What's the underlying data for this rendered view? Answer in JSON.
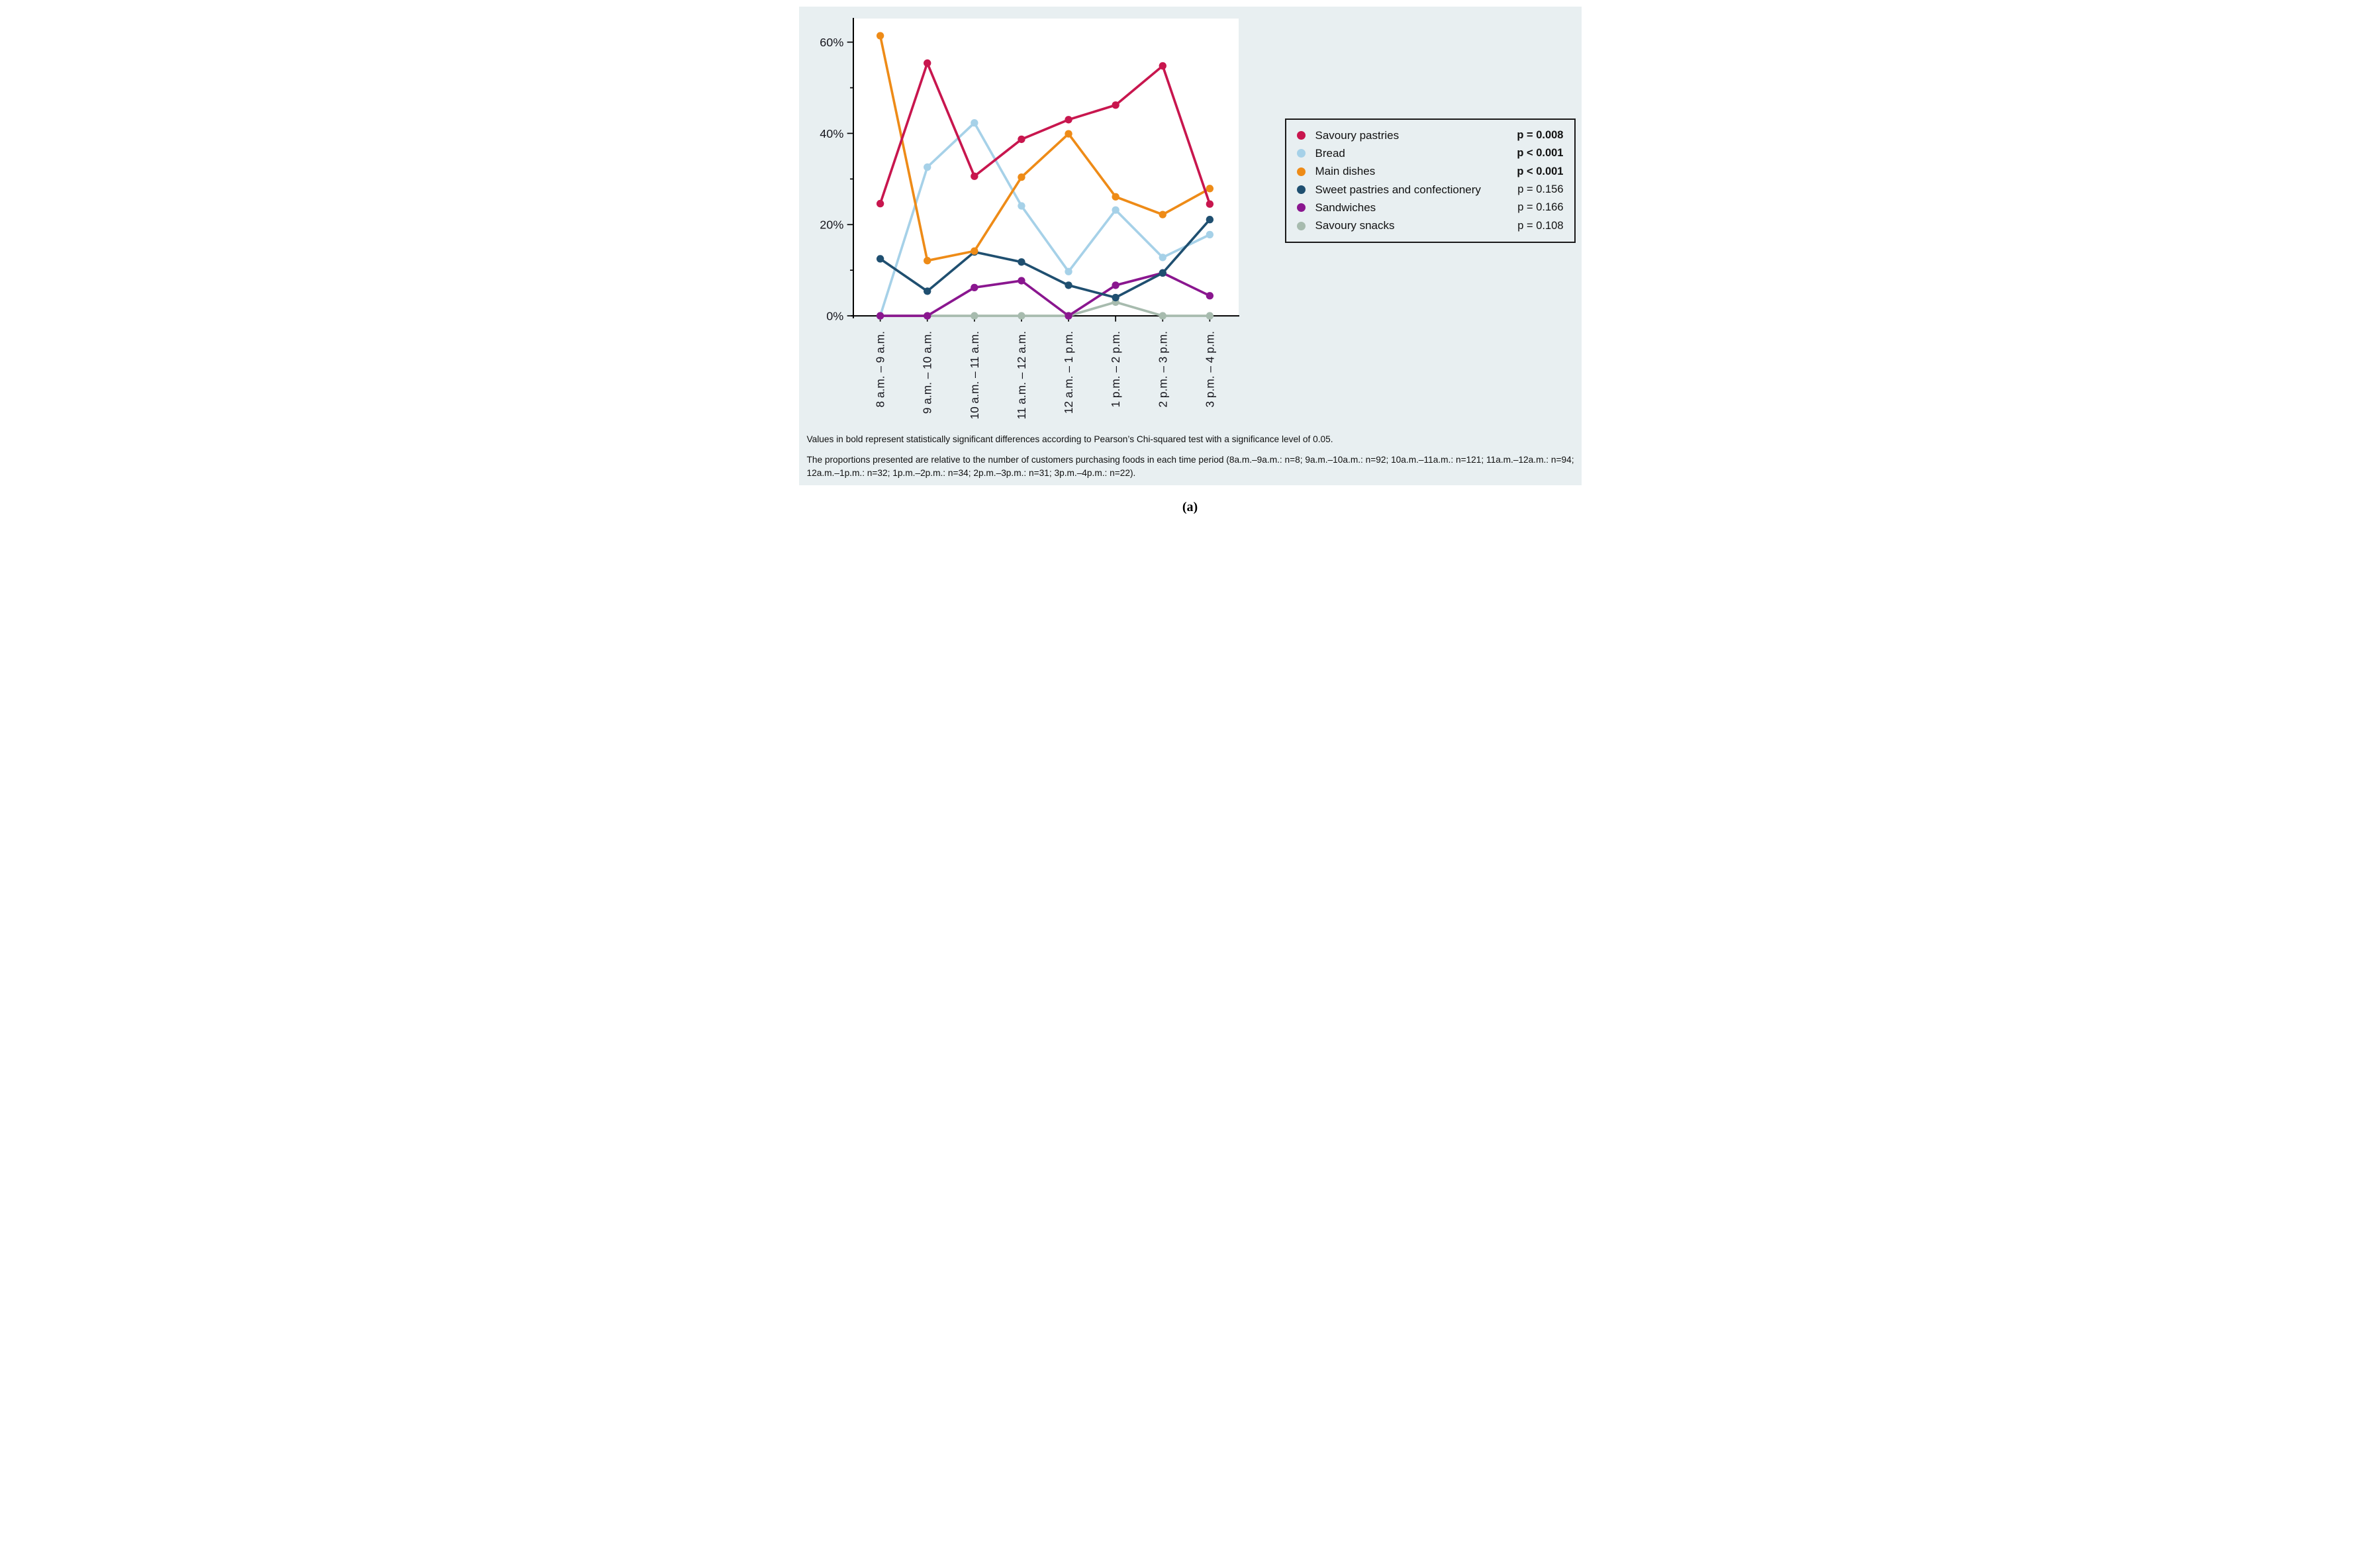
{
  "figure": {
    "caption": "(a)"
  },
  "footnotes": {
    "line1": "Values in bold represent statistically significant differences according to Pearson’s Chi-squared test with a significance level of 0.05.",
    "line2": "The proportions presented are relative to the number of customers purchasing foods in each time period (8a.m.–9a.m.: n=8; 9a.m.–10a.m.: n=92; 10a.m.–11a.m.: n=121; 11a.m.–12a.m.: n=94; 12a.m.–1p.m.: n=32; 1p.m.–2p.m.: n=34; 2p.m.–3p.m.: n=31; 3p.m.–4p.m.: n=22)."
  },
  "chart_data": {
    "type": "line",
    "title": "",
    "xlabel": "",
    "ylabel": "",
    "y_unit": "%",
    "ylim": [
      0,
      65
    ],
    "yticks_major": [
      0,
      20,
      40,
      60
    ],
    "yticks_minor": [
      10,
      30,
      50
    ],
    "grid": false,
    "legend_position": "right",
    "categories": [
      "8 a.m. – 9 a.m.",
      "9 a.m. – 10 a.m.",
      "10 a.m. – 11 a.m.",
      "11 a.m. – 12 a.m.",
      "12 a.m. – 1 p.m.",
      "1 p.m. – 2 p.m.",
      "2 p.m. – 3 p.m.",
      "3 p.m. – 4 p.m."
    ],
    "series": [
      {
        "name": "Savoury pastries",
        "color": "#C8164E",
        "p_label": "p = 0.008",
        "p_bold": true,
        "values": [
          24.6,
          55.4,
          30.6,
          38.7,
          43.0,
          46.2,
          54.8,
          24.5
        ]
      },
      {
        "name": "Bread",
        "color": "#A6D1E8",
        "p_label": "p < 0.001",
        "p_bold": true,
        "values": [
          0,
          32.6,
          42.3,
          24.1,
          9.7,
          23.2,
          12.8,
          17.8
        ]
      },
      {
        "name": "Main dishes",
        "color": "#EE8B17",
        "p_label": "p < 0.001",
        "p_bold": true,
        "values": [
          61.4,
          12.1,
          14.2,
          30.4,
          39.9,
          26.1,
          22.2,
          27.9
        ]
      },
      {
        "name": "Sweet pastries and confectionery",
        "color": "#1F4F70",
        "p_label": "p = 0.156",
        "p_bold": false,
        "values": [
          12.5,
          5.4,
          14.0,
          11.8,
          6.7,
          4.0,
          9.4,
          21.1
        ]
      },
      {
        "name": "Sandwiches",
        "color": "#8A168F",
        "p_label": "p = 0.166",
        "p_bold": false,
        "values": [
          0,
          0,
          6.2,
          7.7,
          0,
          6.7,
          9.4,
          4.4
        ]
      },
      {
        "name": "Savoury snacks",
        "color": "#A7BBAE",
        "p_label": "p = 0.108",
        "p_bold": false,
        "values": [
          0,
          0,
          0,
          0,
          0,
          3.0,
          0,
          0
        ]
      }
    ],
    "draw_order": [
      "Savoury snacks",
      "Bread",
      "Sandwiches",
      "Sweet pastries and confectionery",
      "Main dishes",
      "Savoury pastries"
    ]
  }
}
